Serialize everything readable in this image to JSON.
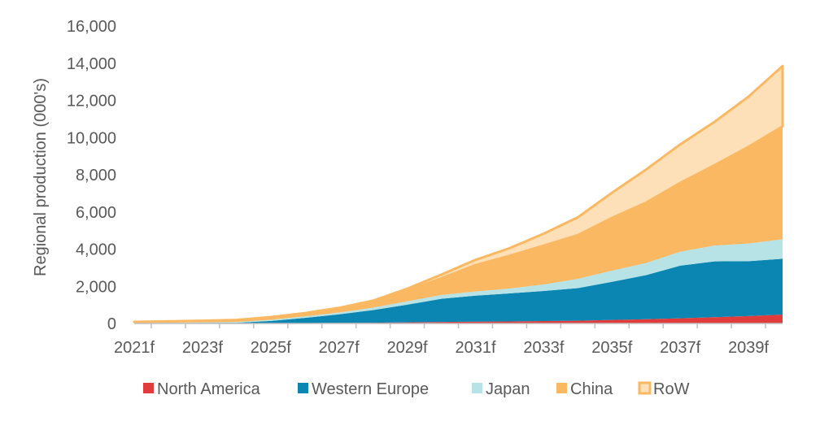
{
  "chart_data": {
    "type": "area",
    "stacked": true,
    "title": "",
    "xlabel": "",
    "ylabel": "Regional production (000's)",
    "ylim": [
      0,
      16000
    ],
    "yticks": [
      "0",
      "2,000",
      "4,000",
      "6,000",
      "8,000",
      "10,000",
      "12,000",
      "14,000",
      "16,000"
    ],
    "x": [
      "2021f",
      "2022f",
      "2023f",
      "2024f",
      "2025f",
      "2026f",
      "2027f",
      "2028f",
      "2029f",
      "2030f",
      "2031f",
      "2032f",
      "2033f",
      "2034f",
      "2035f",
      "2036f",
      "2037f",
      "2038f",
      "2039f",
      "2040f"
    ],
    "xtick_labels": [
      "2021f",
      "2023f",
      "2025f",
      "2027f",
      "2029f",
      "2031f",
      "2033f",
      "2035f",
      "2037f",
      "2039f"
    ],
    "grid": false,
    "legend": "bottom",
    "series": [
      {
        "name": "North America",
        "color": "#e03c3c",
        "values": [
          5,
          5,
          10,
          10,
          15,
          20,
          30,
          40,
          60,
          80,
          100,
          110,
          130,
          150,
          190,
          230,
          280,
          340,
          400,
          480
        ]
      },
      {
        "name": "Western Europe",
        "color": "#0b86b3",
        "values": [
          10,
          15,
          20,
          30,
          120,
          280,
          460,
          680,
          950,
          1250,
          1400,
          1510,
          1620,
          1750,
          2050,
          2370,
          2830,
          3000,
          2950,
          3000
        ]
      },
      {
        "name": "Japan",
        "color": "#b7e3e6",
        "values": [
          20,
          25,
          30,
          40,
          60,
          80,
          100,
          130,
          180,
          200,
          220,
          260,
          350,
          500,
          600,
          650,
          750,
          850,
          950,
          1050
        ]
      },
      {
        "name": "China",
        "color": "#fbb862",
        "values": [
          50,
          70,
          90,
          110,
          150,
          180,
          250,
          380,
          580,
          900,
          1420,
          1760,
          2090,
          2350,
          2840,
          3250,
          3700,
          4320,
          5200,
          6070
        ]
      },
      {
        "name": "RoW",
        "color": "#fde0b8",
        "values": [
          0,
          0,
          0,
          0,
          0,
          0,
          0,
          0,
          100,
          200,
          280,
          410,
          640,
          960,
          1350,
          1780,
          2070,
          2330,
          2700,
          3250
        ]
      }
    ]
  }
}
